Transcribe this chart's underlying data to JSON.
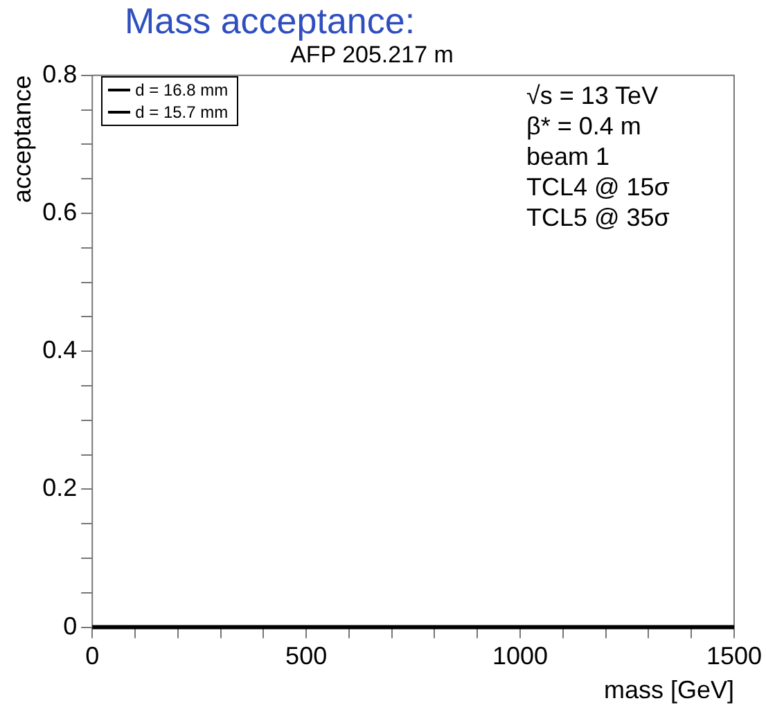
{
  "chart_data": {
    "type": "line",
    "title": "Mass acceptance:",
    "subtitle": "AFP 205.217 m",
    "xlabel": "mass [GeV]",
    "ylabel": "acceptance",
    "xlim": [
      0,
      1500
    ],
    "ylim": [
      0,
      0.8
    ],
    "xticks": [
      0,
      {
        "value": 100,
        "label": null
      },
      {
        "value": 200,
        "label": null
      },
      {
        "value": 300,
        "label": null
      },
      {
        "value": 400,
        "label": null
      },
      500,
      {
        "value": 600,
        "label": null
      },
      {
        "value": 700,
        "label": null
      },
      {
        "value": 800,
        "label": null
      },
      {
        "value": 900,
        "label": null
      },
      1000,
      {
        "value": 1100,
        "label": null
      },
      {
        "value": 1200,
        "label": null
      },
      {
        "value": 1300,
        "label": null
      },
      {
        "value": 1400,
        "label": null
      },
      1500
    ],
    "yticks": [
      0,
      {
        "value": 0.05,
        "label": null
      },
      {
        "value": 0.1,
        "label": null
      },
      {
        "value": 0.15,
        "label": null
      },
      0.2,
      {
        "value": 0.25,
        "label": null
      },
      {
        "value": 0.3,
        "label": null
      },
      {
        "value": 0.35,
        "label": null
      },
      0.4,
      {
        "value": 0.45,
        "label": null
      },
      {
        "value": 0.5,
        "label": null
      },
      {
        "value": 0.55,
        "label": null
      },
      0.6,
      {
        "value": 0.65,
        "label": null
      },
      {
        "value": 0.7,
        "label": null
      },
      {
        "value": 0.75,
        "label": null
      },
      0.8
    ],
    "series": [
      {
        "name": "d = 16.8 mm",
        "color": "#000000",
        "values": [
          null,
          null
        ]
      },
      {
        "name": "d = 15.7 mm",
        "color": "#000000",
        "values": [
          0,
          0
        ]
      }
    ],
    "x": [
      0,
      1500
    ],
    "annotations": [
      "√s = 13 TeV",
      "β* = 0.4 m",
      "beam 1",
      "TCL4 @ 15σ",
      "TCL5 @ 35σ"
    ],
    "legend": "top left",
    "grid": false,
    "marker": "none",
    "line_style": "solid"
  }
}
